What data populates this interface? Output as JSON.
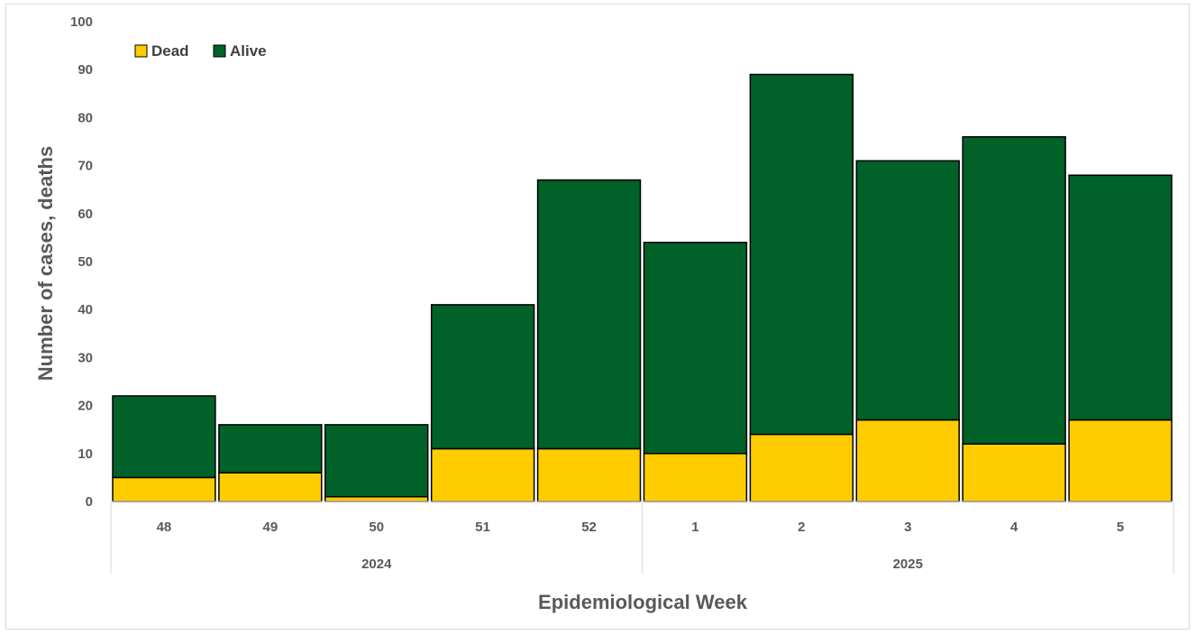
{
  "chart_data": {
    "type": "bar",
    "stacked": true,
    "categories": [
      "48",
      "49",
      "50",
      "51",
      "52",
      "1",
      "2",
      "3",
      "4",
      "5"
    ],
    "groups": [
      {
        "label": "2024",
        "count": 5
      },
      {
        "label": "2025",
        "count": 5
      }
    ],
    "series": [
      {
        "name": "Dead",
        "color": "#FFCC00",
        "values": [
          5,
          6,
          1,
          11,
          11,
          10,
          14,
          17,
          12,
          17
        ]
      },
      {
        "name": "Alive",
        "color": "#006129",
        "values": [
          17,
          10,
          15,
          30,
          56,
          44,
          75,
          54,
          64,
          51
        ]
      }
    ],
    "totals": [
      22,
      16,
      16,
      41,
      67,
      54,
      89,
      71,
      76,
      68
    ],
    "xlabel": "Epidemiological Week",
    "ylabel": "Number of cases, deaths",
    "ylim": [
      0,
      100
    ],
    "yticks": [
      0,
      10,
      20,
      30,
      40,
      50,
      60,
      70,
      80,
      90,
      100
    ],
    "grid": false,
    "legend": {
      "position": "top-left",
      "items": [
        "Dead",
        "Alive"
      ]
    }
  }
}
